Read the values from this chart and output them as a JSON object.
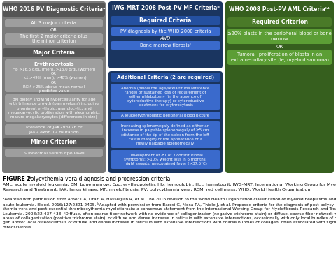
{
  "bg_color": "#ffffff",
  "col1_header": "WHO 2016 PV Diagnostic Criteriaᵃ",
  "col1_box1_text": "All 3 major criteria",
  "col1_or1": "OR",
  "col1_box2_text": "The first 2 major criteria plus\nthe minor criterion",
  "col1_major_header": "Major Criteria",
  "col1_eryth_header": "Erythrocytosis",
  "col1_eryth_text": "Hb >16.5 g/dL (men), >16.0 g/dL (women)\nOR\nHct >49% (men), >48% (women)\nOR\nRCM >25% above mean normal\npredicted value",
  "col1_bm_text": "BM biopsy showing hypercellularity for age\nwith trilineage growth (panmyelosis) including\nprominent erythroid, granulocytic, and\nmegakaryocytic proliferation with pleomorphic,\nmature megakaryocytes (differences in size)",
  "col1_jak_text": "Presence of JAK2V617F or\nJAK2 exon 12 mutation",
  "col1_minor_header": "Minor Criterion",
  "col1_minor_text": "Subnormal serum Epo level",
  "col2_header": "IWG-MRT 2008 Post-PV MF Criteriaᵇ",
  "col2_req_header": "Required Criteria",
  "col2_box1_text": "PV diagnosis by the WHO 2008 criteria",
  "col2_and": "AND",
  "col2_box2_text": "Bone marrow fibrosisᶜ",
  "col2_add_header": "Additional Criteria (2 are required)",
  "col2_add1_text": "Anemia (below the age/sex/altitude reference\nrange) or sustained loss of requirement of\neither phlebotomy (in the absence of\ncytoreductive therapy) or cytoreductive\ntreatment for erythrocytosis",
  "col2_add2_text": "A leukoerythroblastic peripheral blood picture",
  "col2_add3_text": "Increasing splenomegaly defined as either an\nincrease in palpable splenomegaly of ≥5 cm\n(distance of the tip of the spleen from the left\ncostal margin) or the appearance of a\nnewly palpable splenomegaly",
  "col2_add4_text": "Development of ≥1 of 3 constitutional\nsymptoms: >10% weight loss in 6 months,\nnight sweats, unexplained fever (>37.5°C)",
  "col3_header": "WHO 2008 Post-PV AML Criteriaʰʰ",
  "col3_req_header": "Required Criterion",
  "col3_box1_text": "≥20% blasts in the peripheral blood or bone\nmarrow",
  "col3_or": "OR",
  "col3_box2_text": "Tumoral  proliferation of blasts in an\nextramedullary site (ie, myeloid sarcoma)",
  "caption": "FIGURE 2",
  "caption_rest": " Polycythemia vera diagnosis and progression criteria.",
  "legend_text": "AML, acute myeloid leukemia; BM, bone marrow; Epo, erythropoietin; Hb, hemoglobin; Hct, hematocrit; IWG-MRT, International Working Group for Myelofibrosis\nResearch and Treatment; JAK, Janus kinase; MF, myelofibrosis; PV, polycythemia vera; RCM, red cell mass; WHO, World Health Organization.",
  "footnote_text": "ᵃAdapted with permission from Arber DA, Orazi A, Hasserjian R, et al. The 2016 revision to the World Health Organization classification of myeloid neoplasms and\nacute leukemia. Blood. 2016;127:2391-2405. ᵇAdapted with permission from Barosi G, Mesa RA, Thiele J, et al. Proposed criteria for the diagnosis of post-polycy-\nthemia vera and post-essential thrombocythemia myelofibrosis: a consensus statement from the International Working Group for Myelofibrosis Research and Treatment.\nLeukemia. 2008;22:437-438. ᶜDiffuse, often coarse fiber network with no evidence of collagenization (negative trichrome stain) or diffuse, coarse fiber network with\nareas of collagenization (positive trichrome stain), or diffuse and dense increase in reticulin with extensive intersections, occasionally with only local bundles of colla-\ngen and/or local osteosclerosis or diffuse and dense increase in reticulin with extensive intersections with coarse bundles of collagen, often associated with significant\nosteosclerosis."
}
